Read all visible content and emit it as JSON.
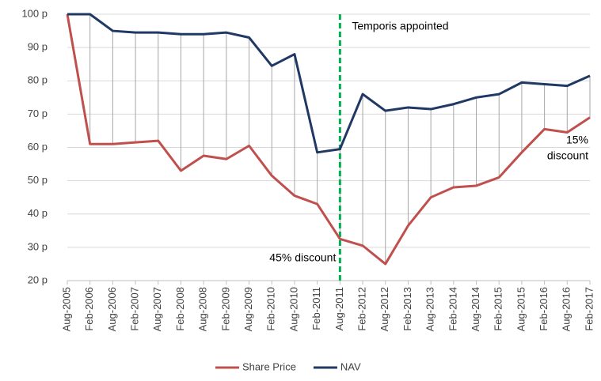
{
  "chart_data": {
    "type": "line",
    "categories": [
      "Aug-2005",
      "Feb-2006",
      "Aug-2006",
      "Feb-2007",
      "Aug-2007",
      "Feb-2008",
      "Aug-2008",
      "Feb-2009",
      "Aug-2009",
      "Feb-2010",
      "Aug-2010",
      "Feb-2011",
      "Aug-2011",
      "Feb-2012",
      "Aug-2012",
      "Feb-2013",
      "Aug-2013",
      "Feb-2014",
      "Aug-2014",
      "Feb-2015",
      "Aug-2015",
      "Feb-2016",
      "Aug-2016",
      "Feb-2017"
    ],
    "series": [
      {
        "name": "Share Price",
        "color": "#c0504d",
        "values": [
          100,
          61,
          61,
          61.5,
          62,
          53,
          57.5,
          56.5,
          60.5,
          51.5,
          45.5,
          43,
          32.5,
          30.5,
          25,
          36.5,
          45,
          48,
          48.5,
          51,
          58.5,
          65.5,
          64.5,
          69
        ]
      },
      {
        "name": "NAV",
        "color": "#1f3864",
        "values": [
          100,
          100,
          95,
          94.5,
          94.5,
          94,
          94,
          94.5,
          93,
          84.5,
          88,
          58.5,
          59.5,
          76,
          71,
          72,
          71.5,
          73,
          75,
          76,
          79.5,
          79,
          78.5,
          81.5
        ]
      }
    ],
    "ylim": [
      20,
      100
    ],
    "yticks": [
      {
        "value": 20,
        "label": "20 p"
      },
      {
        "value": 30,
        "label": "30 p"
      },
      {
        "value": 40,
        "label": "40 p"
      },
      {
        "value": 50,
        "label": "50 p"
      },
      {
        "value": 60,
        "label": "60 p"
      },
      {
        "value": 70,
        "label": "70 p"
      },
      {
        "value": 80,
        "label": "80 p"
      },
      {
        "value": 90,
        "label": "90 p"
      },
      {
        "value": 100,
        "label": "100 p"
      }
    ],
    "grid": true,
    "high_low_lines": true,
    "vline": {
      "category": "Aug-2011",
      "color": "#00b050"
    },
    "annotations": [
      {
        "lines": [
          "Temporis appointed"
        ]
      },
      {
        "lines": [
          "45% discount"
        ]
      },
      {
        "lines": [
          "15%",
          "discount"
        ]
      }
    ],
    "legend": "bottom"
  }
}
